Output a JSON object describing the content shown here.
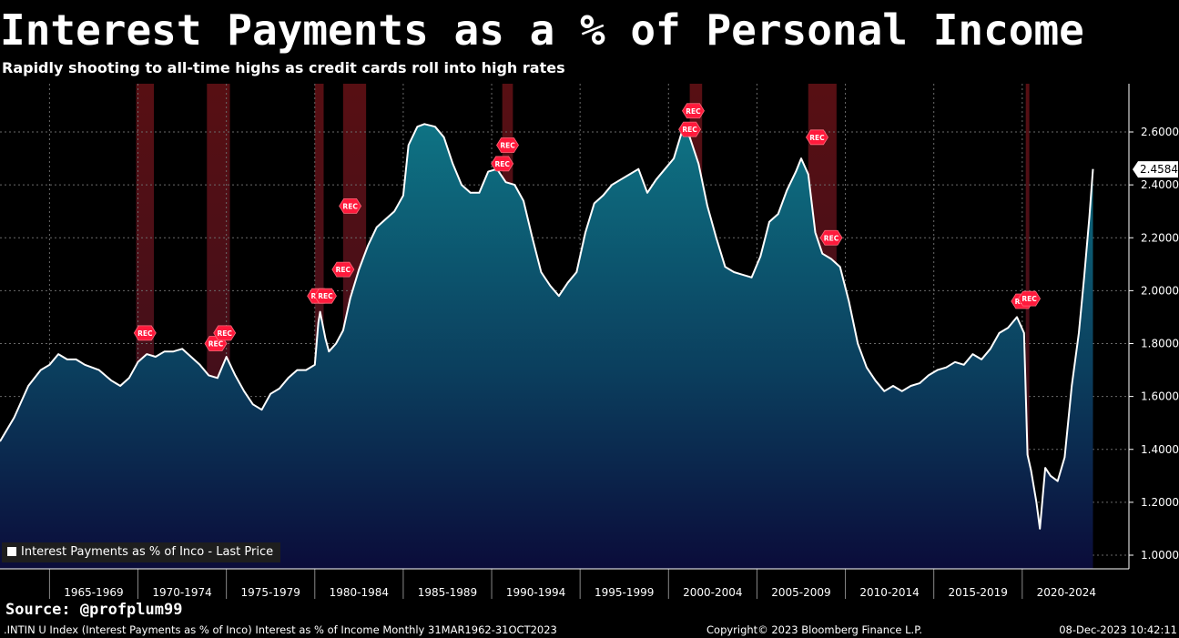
{
  "header": {
    "title": "Interest Payments as a % of Personal Income",
    "subtitle": "Rapidly shooting to all-time highs as credit cards roll into high rates"
  },
  "source": "Source: @profplum99",
  "footer": {
    "left": ".INTIN U Index (Interest Payments as % of Inco) Interest as % of Income  Monthly 31MAR1962-31OCT2023",
    "middle": "Copyright© 2023 Bloomberg Finance L.P.",
    "right": "08-Dec-2023 10:42:11"
  },
  "legend": {
    "label": "Interest Payments as % of Inco - Last Price"
  },
  "colors": {
    "line": "#ffffff",
    "fill_top": "#0d6b7a",
    "fill_bottom": "#0b0d3a",
    "recession": "#5a1418",
    "grid": "#666666",
    "rec_marker": "#ff1a3c"
  },
  "chart_data": {
    "type": "area",
    "title": "Interest Payments as a % of Personal Income",
    "ylim": [
      0.95,
      2.75
    ],
    "xlim": [
      1962.2,
      2024.9
    ],
    "yticks": [
      "1.0000",
      "1.2000",
      "1.4000",
      "1.6000",
      "1.8000",
      "2.0000",
      "2.2000",
      "2.4000",
      "2.6000"
    ],
    "xtick_labels": [
      "1965-1969",
      "1970-1974",
      "1975-1979",
      "1980-1984",
      "1985-1989",
      "1990-1994",
      "1995-1999",
      "2000-2004",
      "2005-2009",
      "2010-2014",
      "2015-2019",
      "2020-2024"
    ],
    "last_value_label": "2.4584",
    "rec_label": "REC",
    "grid": true,
    "legend_position": "bottom-left",
    "recessions": [
      [
        1969.9,
        1970.9
      ],
      [
        1973.9,
        1975.2
      ],
      [
        1980.0,
        1980.5
      ],
      [
        1981.6,
        1982.9
      ],
      [
        1990.6,
        1991.2
      ],
      [
        2001.2,
        2001.9
      ],
      [
        2007.9,
        2009.5
      ],
      [
        2020.2,
        2020.4
      ]
    ],
    "rec_markers": [
      [
        1970.4,
        1.84
      ],
      [
        1974.4,
        1.8
      ],
      [
        1974.9,
        1.84
      ],
      [
        1980.2,
        1.98
      ],
      [
        1980.6,
        1.98
      ],
      [
        1982.0,
        2.32
      ],
      [
        1981.6,
        2.08
      ],
      [
        1990.9,
        2.55
      ],
      [
        1990.6,
        2.48
      ],
      [
        2001.4,
        2.68
      ],
      [
        2001.2,
        2.61
      ],
      [
        2008.4,
        2.58
      ],
      [
        2009.2,
        2.2
      ],
      [
        2020.0,
        1.96
      ],
      [
        2020.4,
        1.97
      ]
    ],
    "series": [
      {
        "name": "Interest Payments as % of Inco - Last Price",
        "points": [
          [
            1962.2,
            1.43
          ],
          [
            1963.0,
            1.52
          ],
          [
            1963.8,
            1.64
          ],
          [
            1964.5,
            1.7
          ],
          [
            1965.0,
            1.72
          ],
          [
            1965.5,
            1.76
          ],
          [
            1966.0,
            1.74
          ],
          [
            1966.5,
            1.74
          ],
          [
            1967.0,
            1.72
          ],
          [
            1967.8,
            1.7
          ],
          [
            1968.5,
            1.66
          ],
          [
            1969.0,
            1.64
          ],
          [
            1969.5,
            1.67
          ],
          [
            1970.0,
            1.73
          ],
          [
            1970.5,
            1.76
          ],
          [
            1971.0,
            1.75
          ],
          [
            1971.5,
            1.77
          ],
          [
            1972.0,
            1.77
          ],
          [
            1972.5,
            1.78
          ],
          [
            1973.0,
            1.75
          ],
          [
            1973.5,
            1.72
          ],
          [
            1974.0,
            1.68
          ],
          [
            1974.5,
            1.67
          ],
          [
            1975.0,
            1.75
          ],
          [
            1975.5,
            1.68
          ],
          [
            1976.0,
            1.62
          ],
          [
            1976.5,
            1.57
          ],
          [
            1977.0,
            1.55
          ],
          [
            1977.5,
            1.61
          ],
          [
            1978.0,
            1.63
          ],
          [
            1978.5,
            1.67
          ],
          [
            1979.0,
            1.7
          ],
          [
            1979.5,
            1.7
          ],
          [
            1980.0,
            1.72
          ],
          [
            1980.2,
            1.88
          ],
          [
            1980.3,
            1.92
          ],
          [
            1980.6,
            1.82
          ],
          [
            1980.8,
            1.77
          ],
          [
            1981.2,
            1.8
          ],
          [
            1981.6,
            1.85
          ],
          [
            1982.0,
            1.97
          ],
          [
            1982.5,
            2.08
          ],
          [
            1983.0,
            2.17
          ],
          [
            1983.5,
            2.24
          ],
          [
            1984.0,
            2.27
          ],
          [
            1984.5,
            2.3
          ],
          [
            1985.0,
            2.36
          ],
          [
            1985.3,
            2.55
          ],
          [
            1985.8,
            2.62
          ],
          [
            1986.2,
            2.63
          ],
          [
            1986.8,
            2.62
          ],
          [
            1987.3,
            2.58
          ],
          [
            1987.8,
            2.48
          ],
          [
            1988.3,
            2.4
          ],
          [
            1988.8,
            2.37
          ],
          [
            1989.3,
            2.37
          ],
          [
            1989.8,
            2.45
          ],
          [
            1990.3,
            2.46
          ],
          [
            1990.8,
            2.41
          ],
          [
            1991.3,
            2.4
          ],
          [
            1991.8,
            2.34
          ],
          [
            1992.3,
            2.2
          ],
          [
            1992.8,
            2.07
          ],
          [
            1993.3,
            2.02
          ],
          [
            1993.8,
            1.98
          ],
          [
            1994.3,
            2.03
          ],
          [
            1994.8,
            2.07
          ],
          [
            1995.3,
            2.22
          ],
          [
            1995.8,
            2.33
          ],
          [
            1996.3,
            2.36
          ],
          [
            1996.8,
            2.4
          ],
          [
            1997.3,
            2.42
          ],
          [
            1997.8,
            2.44
          ],
          [
            1998.3,
            2.46
          ],
          [
            1998.8,
            2.37
          ],
          [
            1999.3,
            2.42
          ],
          [
            1999.8,
            2.46
          ],
          [
            2000.3,
            2.5
          ],
          [
            2000.8,
            2.61
          ],
          [
            2001.2,
            2.58
          ],
          [
            2001.7,
            2.48
          ],
          [
            2002.2,
            2.32
          ],
          [
            2002.7,
            2.2
          ],
          [
            2003.2,
            2.09
          ],
          [
            2003.7,
            2.07
          ],
          [
            2004.2,
            2.06
          ],
          [
            2004.7,
            2.05
          ],
          [
            2005.2,
            2.13
          ],
          [
            2005.7,
            2.26
          ],
          [
            2006.2,
            2.29
          ],
          [
            2006.7,
            2.38
          ],
          [
            2007.2,
            2.45
          ],
          [
            2007.5,
            2.5
          ],
          [
            2007.9,
            2.44
          ],
          [
            2008.3,
            2.22
          ],
          [
            2008.7,
            2.14
          ],
          [
            2009.2,
            2.12
          ],
          [
            2009.7,
            2.09
          ],
          [
            2010.2,
            1.96
          ],
          [
            2010.7,
            1.8
          ],
          [
            2011.2,
            1.71
          ],
          [
            2011.7,
            1.66
          ],
          [
            2012.2,
            1.62
          ],
          [
            2012.7,
            1.64
          ],
          [
            2013.2,
            1.62
          ],
          [
            2013.7,
            1.64
          ],
          [
            2014.2,
            1.65
          ],
          [
            2014.7,
            1.68
          ],
          [
            2015.2,
            1.7
          ],
          [
            2015.7,
            1.71
          ],
          [
            2016.2,
            1.73
          ],
          [
            2016.7,
            1.72
          ],
          [
            2017.2,
            1.76
          ],
          [
            2017.7,
            1.74
          ],
          [
            2018.2,
            1.78
          ],
          [
            2018.7,
            1.84
          ],
          [
            2019.2,
            1.86
          ],
          [
            2019.7,
            1.9
          ],
          [
            2020.1,
            1.84
          ],
          [
            2020.3,
            1.38
          ],
          [
            2020.5,
            1.32
          ],
          [
            2020.8,
            1.2
          ],
          [
            2021.0,
            1.1
          ],
          [
            2021.3,
            1.33
          ],
          [
            2021.6,
            1.3
          ],
          [
            2022.0,
            1.28
          ],
          [
            2022.4,
            1.37
          ],
          [
            2022.8,
            1.64
          ],
          [
            2023.2,
            1.84
          ],
          [
            2023.5,
            2.05
          ],
          [
            2023.8,
            2.28
          ],
          [
            2024.0,
            2.46
          ]
        ]
      }
    ]
  }
}
